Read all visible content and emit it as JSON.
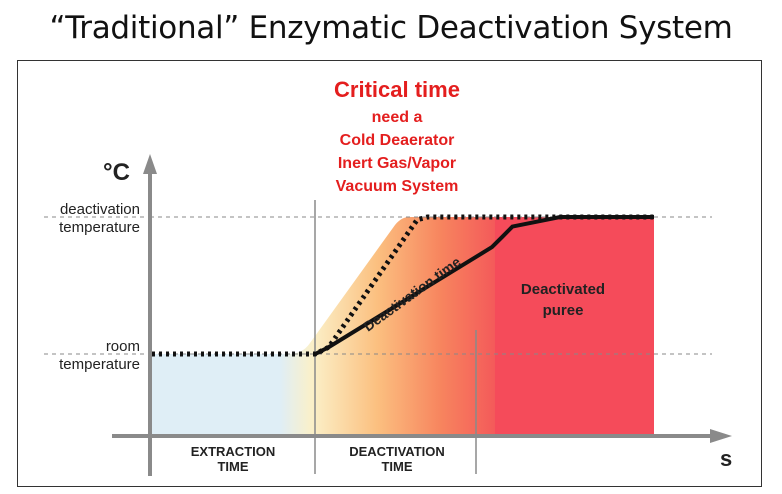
{
  "title": "“Traditional” Enzymatic Deactivation System",
  "chart_data": {
    "type": "line",
    "title": "“Traditional” Enzymatic Deactivation System",
    "xlabel": "s",
    "ylabel": "°C",
    "y_levels": [
      "room temperature",
      "deactivation temperature"
    ],
    "y_tick_labels": [
      [
        "room",
        "temperature"
      ],
      [
        "deactivation",
        "temperature"
      ]
    ],
    "phases": [
      [
        "EXTRACTION",
        "TIME"
      ],
      [
        "DEACTIVATION",
        "TIME"
      ]
    ],
    "annotation": {
      "heading": "Critical time",
      "lines": [
        "need a",
        "Cold Deaerator",
        "Inert Gas/Vapor",
        "Vacuum System"
      ],
      "color": "#e41e1e"
    },
    "curve_label": "Deactivation time",
    "region_label": [
      "Deactivated",
      "puree"
    ],
    "series": [
      {
        "style": "dotted",
        "points": [
          [
            0,
            0
          ],
          [
            0.48,
            0
          ],
          [
            0.52,
            0.05
          ],
          [
            0.78,
            0.98
          ],
          [
            0.81,
            1
          ],
          [
            1.5,
            1
          ]
        ]
      },
      {
        "style": "solid",
        "points": [
          [
            0.48,
            0
          ],
          [
            0.52,
            0.05
          ],
          [
            1.0,
            0.78
          ],
          [
            1.06,
            0.93
          ],
          [
            1.2,
            1
          ],
          [
            1.5,
            1
          ]
        ]
      }
    ],
    "colors": {
      "room_fill": "#dfeef6",
      "gradient": [
        "#fdf2c4",
        "#fbc583",
        "#f8895f",
        "#f55a5a"
      ],
      "deactivated_fill": "#f54b5a",
      "accent": "#e41e1e"
    },
    "grid": "dashed reference lines at room and deactivation temperature",
    "legend": "none"
  }
}
